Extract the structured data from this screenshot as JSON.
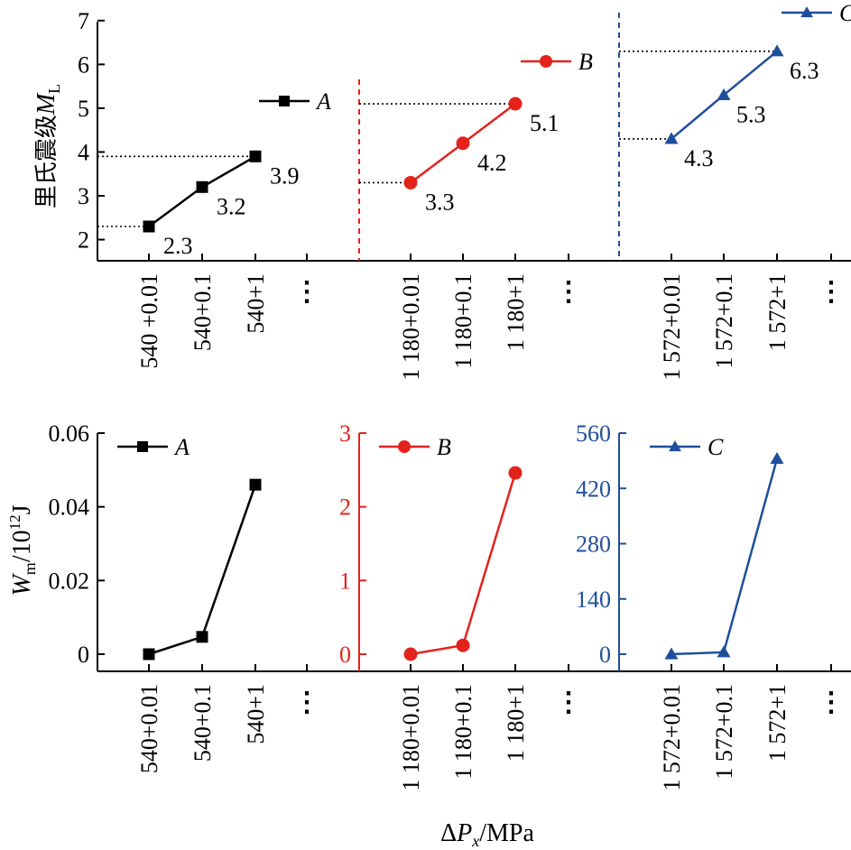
{
  "colors": {
    "A": "#000000",
    "B": "#e3231b",
    "C": "#1f4e9c"
  },
  "chart_data": [
    {
      "id": "top",
      "type": "line",
      "ylabel": "里氏震级",
      "ylabel_symbol": "M",
      "ylabel_sub": "L",
      "ylim": [
        1.5,
        7
      ],
      "yticks": [
        "2",
        "3",
        "4",
        "5",
        "6",
        "7"
      ],
      "ellipsis": "⋮",
      "series": [
        {
          "name": "A",
          "marker": "square",
          "x": [
            "540 +0.01",
            "540+0.1",
            "540+1"
          ],
          "values": [
            2.3,
            3.2,
            3.9
          ],
          "labels": [
            "2.3",
            "3.2",
            "3.9"
          ]
        },
        {
          "name": "B",
          "marker": "circle",
          "x": [
            "1 180+0.01",
            "1 180+0.1",
            "1 180+1"
          ],
          "values": [
            3.3,
            4.2,
            5.1
          ],
          "labels": [
            "3.3",
            "4.2",
            "5.1"
          ]
        },
        {
          "name": "C",
          "marker": "triangle",
          "x": [
            "1 572+0.01",
            "1 572+0.1",
            "1 572+1"
          ],
          "values": [
            4.3,
            5.3,
            6.3
          ],
          "labels": [
            "4.3",
            "5.3",
            "6.3"
          ]
        }
      ]
    },
    {
      "id": "bottom",
      "type": "line",
      "xlabel_prefix": "Δ",
      "xlabel_symbol": "P",
      "xlabel_sub": "x",
      "xlabel_unit": "/MPa",
      "ylabel_symbol": "W",
      "ylabel_sub": "m",
      "ylabel_unit_a": "/10",
      "ylabel_unit_sup": "12",
      "ylabel_unit_b": "J",
      "ellipsis": "⋮",
      "series": [
        {
          "name": "A",
          "marker": "square",
          "x": [
            "540+0.01",
            "540+0.1",
            "540+1"
          ],
          "values": [
            0.0,
            0.0047,
            0.046
          ],
          "ylim": [
            0,
            0.06
          ],
          "yticks": [
            "0",
            "0.02",
            "0.04",
            "0.06"
          ]
        },
        {
          "name": "B",
          "marker": "circle",
          "x": [
            "1 180+0.01",
            "1 180+0.1",
            "1 180+1"
          ],
          "values": [
            0.0,
            0.12,
            2.46
          ],
          "ylim": [
            0,
            3
          ],
          "yticks": [
            "0",
            "1",
            "2",
            "3"
          ]
        },
        {
          "name": "C",
          "marker": "triangle",
          "x": [
            "1 572+0.01",
            "1 572+0.1",
            "1 572+1"
          ],
          "values": [
            0.0,
            5,
            495
          ],
          "ylim": [
            0,
            560
          ],
          "yticks": [
            "0",
            "140",
            "280",
            "420",
            "560"
          ]
        }
      ]
    }
  ]
}
